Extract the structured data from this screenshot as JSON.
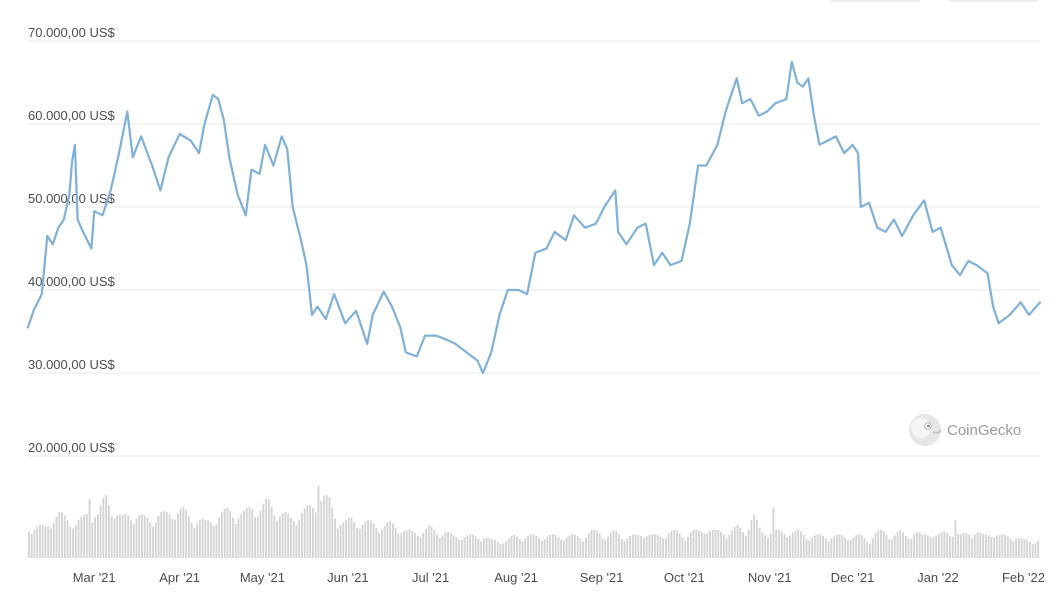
{
  "chart_data": {
    "type": "line",
    "title": "",
    "xlabel": "",
    "ylabel": "",
    "y_tick_labels": [
      "70.000,00 US$",
      "60.000,00 US$",
      "50.000,00 US$",
      "40.000,00 US$",
      "30.000,00 US$",
      "20.000,00 US$"
    ],
    "y_ticks": [
      70000,
      60000,
      50000,
      40000,
      30000,
      20000
    ],
    "ylim": [
      20000,
      70000
    ],
    "x_tick_labels": [
      "Mar '21",
      "Apr '21",
      "May '21",
      "Jun '21",
      "Jul '21",
      "Aug '21",
      "Sep '21",
      "Oct '21",
      "Nov '21",
      "Dec '21",
      "Jan '22",
      "Feb '22"
    ],
    "x_ticks": [
      "2021-03-01",
      "2021-04-01",
      "2021-05-01",
      "2021-06-01",
      "2021-07-01",
      "2021-08-01",
      "2021-09-01",
      "2021-10-01",
      "2021-11-01",
      "2021-12-01",
      "2022-01-01",
      "2022-02-01"
    ],
    "xlim": [
      "2021-02-05",
      "2022-02-07"
    ],
    "grid": true,
    "line_color": "#7eb0d8",
    "volume_color": "#d4d4d4",
    "series": [
      {
        "values": [
          [
            "2021-02-05",
            35500
          ],
          [
            "2021-02-07",
            37500
          ],
          [
            "2021-02-10",
            39500
          ],
          [
            "2021-02-12",
            46500
          ],
          [
            "2021-02-14",
            45500
          ],
          [
            "2021-02-16",
            47500
          ],
          [
            "2021-02-18",
            48500
          ],
          [
            "2021-02-20",
            51500
          ],
          [
            "2021-02-21",
            55500
          ],
          [
            "2021-02-22",
            57500
          ],
          [
            "2021-02-23",
            48500
          ],
          [
            "2021-02-25",
            47000
          ],
          [
            "2021-02-28",
            45000
          ],
          [
            "2021-03-01",
            49500
          ],
          [
            "2021-03-04",
            49000
          ],
          [
            "2021-03-07",
            52000
          ],
          [
            "2021-03-10",
            56500
          ],
          [
            "2021-03-13",
            61500
          ],
          [
            "2021-03-15",
            56000
          ],
          [
            "2021-03-18",
            58500
          ],
          [
            "2021-03-22",
            55000
          ],
          [
            "2021-03-25",
            52000
          ],
          [
            "2021-03-28",
            56000
          ],
          [
            "2021-04-01",
            58800
          ],
          [
            "2021-04-05",
            58000
          ],
          [
            "2021-04-08",
            56500
          ],
          [
            "2021-04-10",
            60000
          ],
          [
            "2021-04-13",
            63500
          ],
          [
            "2021-04-15",
            63000
          ],
          [
            "2021-04-17",
            60500
          ],
          [
            "2021-04-19",
            56000
          ],
          [
            "2021-04-22",
            51500
          ],
          [
            "2021-04-25",
            49000
          ],
          [
            "2021-04-27",
            54500
          ],
          [
            "2021-04-30",
            54000
          ],
          [
            "2021-05-02",
            57500
          ],
          [
            "2021-05-05",
            55000
          ],
          [
            "2021-05-08",
            58500
          ],
          [
            "2021-05-10",
            57000
          ],
          [
            "2021-05-12",
            50000
          ],
          [
            "2021-05-15",
            46000
          ],
          [
            "2021-05-17",
            43000
          ],
          [
            "2021-05-19",
            37000
          ],
          [
            "2021-05-21",
            38000
          ],
          [
            "2021-05-24",
            36500
          ],
          [
            "2021-05-27",
            39500
          ],
          [
            "2021-05-31",
            36000
          ],
          [
            "2021-06-04",
            37500
          ],
          [
            "2021-06-08",
            33500
          ],
          [
            "2021-06-10",
            37000
          ],
          [
            "2021-06-14",
            39800
          ],
          [
            "2021-06-17",
            38000
          ],
          [
            "2021-06-20",
            35500
          ],
          [
            "2021-06-22",
            32500
          ],
          [
            "2021-06-26",
            32000
          ],
          [
            "2021-06-29",
            34500
          ],
          [
            "2021-07-03",
            34500
          ],
          [
            "2021-07-07",
            34000
          ],
          [
            "2021-07-10",
            33500
          ],
          [
            "2021-07-14",
            32500
          ],
          [
            "2021-07-18",
            31500
          ],
          [
            "2021-07-20",
            30000
          ],
          [
            "2021-07-23",
            32500
          ],
          [
            "2021-07-26",
            37000
          ],
          [
            "2021-07-29",
            40000
          ],
          [
            "2021-08-02",
            40000
          ],
          [
            "2021-08-05",
            39500
          ],
          [
            "2021-08-08",
            44500
          ],
          [
            "2021-08-12",
            45000
          ],
          [
            "2021-08-15",
            47000
          ],
          [
            "2021-08-19",
            46000
          ],
          [
            "2021-08-22",
            49000
          ],
          [
            "2021-08-26",
            47500
          ],
          [
            "2021-08-30",
            48000
          ],
          [
            "2021-09-02",
            50000
          ],
          [
            "2021-09-06",
            52000
          ],
          [
            "2021-09-07",
            47000
          ],
          [
            "2021-09-10",
            45500
          ],
          [
            "2021-09-14",
            47500
          ],
          [
            "2021-09-17",
            48000
          ],
          [
            "2021-09-20",
            43000
          ],
          [
            "2021-09-23",
            44500
          ],
          [
            "2021-09-26",
            43000
          ],
          [
            "2021-09-30",
            43500
          ],
          [
            "2021-10-03",
            48000
          ],
          [
            "2021-10-06",
            55000
          ],
          [
            "2021-10-09",
            55000
          ],
          [
            "2021-10-13",
            57500
          ],
          [
            "2021-10-16",
            61500
          ],
          [
            "2021-10-20",
            65500
          ],
          [
            "2021-10-22",
            62500
          ],
          [
            "2021-10-25",
            63000
          ],
          [
            "2021-10-28",
            61000
          ],
          [
            "2021-10-31",
            61500
          ],
          [
            "2021-11-03",
            62500
          ],
          [
            "2021-11-07",
            63000
          ],
          [
            "2021-11-09",
            67500
          ],
          [
            "2021-11-11",
            65000
          ],
          [
            "2021-11-13",
            64500
          ],
          [
            "2021-11-15",
            65500
          ],
          [
            "2021-11-17",
            61000
          ],
          [
            "2021-11-19",
            57500
          ],
          [
            "2021-11-22",
            58000
          ],
          [
            "2021-11-25",
            58500
          ],
          [
            "2021-11-28",
            56500
          ],
          [
            "2021-12-01",
            57500
          ],
          [
            "2021-12-03",
            56500
          ],
          [
            "2021-12-04",
            50000
          ],
          [
            "2021-12-07",
            50500
          ],
          [
            "2021-12-10",
            47500
          ],
          [
            "2021-12-13",
            47000
          ],
          [
            "2021-12-16",
            48500
          ],
          [
            "2021-12-19",
            46500
          ],
          [
            "2021-12-23",
            49000
          ],
          [
            "2021-12-27",
            50800
          ],
          [
            "2021-12-30",
            47000
          ],
          [
            "2022-01-02",
            47500
          ],
          [
            "2022-01-06",
            43000
          ],
          [
            "2022-01-09",
            41800
          ],
          [
            "2022-01-12",
            43500
          ],
          [
            "2022-01-15",
            43000
          ],
          [
            "2022-01-19",
            42000
          ],
          [
            "2022-01-21",
            38000
          ],
          [
            "2022-01-23",
            36000
          ],
          [
            "2022-01-27",
            37000
          ],
          [
            "2022-01-31",
            38500
          ],
          [
            "2022-02-03",
            37000
          ],
          [
            "2022-02-07",
            38500
          ]
        ]
      }
    ],
    "volume_profile": [
      7,
      7,
      7,
      9,
      10,
      9,
      8,
      9,
      11,
      10,
      14,
      11,
      9,
      10,
      10,
      9,
      9,
      10,
      10,
      11,
      11,
      9,
      9,
      8,
      9,
      10,
      11,
      10,
      10,
      12,
      11,
      13,
      11,
      10,
      9,
      10,
      11,
      12,
      14,
      13,
      9,
      8,
      9,
      8,
      8,
      8,
      7,
      8,
      7,
      6,
      6,
      6,
      7,
      6,
      6,
      5,
      5,
      5,
      5,
      5,
      4,
      4,
      4,
      5,
      5,
      5,
      5,
      5,
      5,
      5,
      5,
      5,
      5,
      6,
      6,
      5,
      6,
      5,
      5,
      5,
      6,
      5,
      5,
      6,
      6,
      5,
      6,
      6,
      7,
      6,
      6,
      6,
      7,
      6,
      10,
      6,
      6,
      6,
      6,
      6,
      6,
      5,
      5,
      5,
      5,
      5,
      5,
      5,
      5,
      4,
      6,
      6,
      5,
      6,
      5,
      6,
      5,
      6,
      5,
      6,
      6,
      5,
      6,
      6,
      5,
      6,
      5,
      5,
      5,
      4,
      4,
      4
    ]
  },
  "watermark": {
    "brand": "CoinGecko",
    "icon": "gecko-logo-icon"
  },
  "toolbar": {
    "icons": [
      "range-button-icon",
      "range-button-icon"
    ]
  }
}
